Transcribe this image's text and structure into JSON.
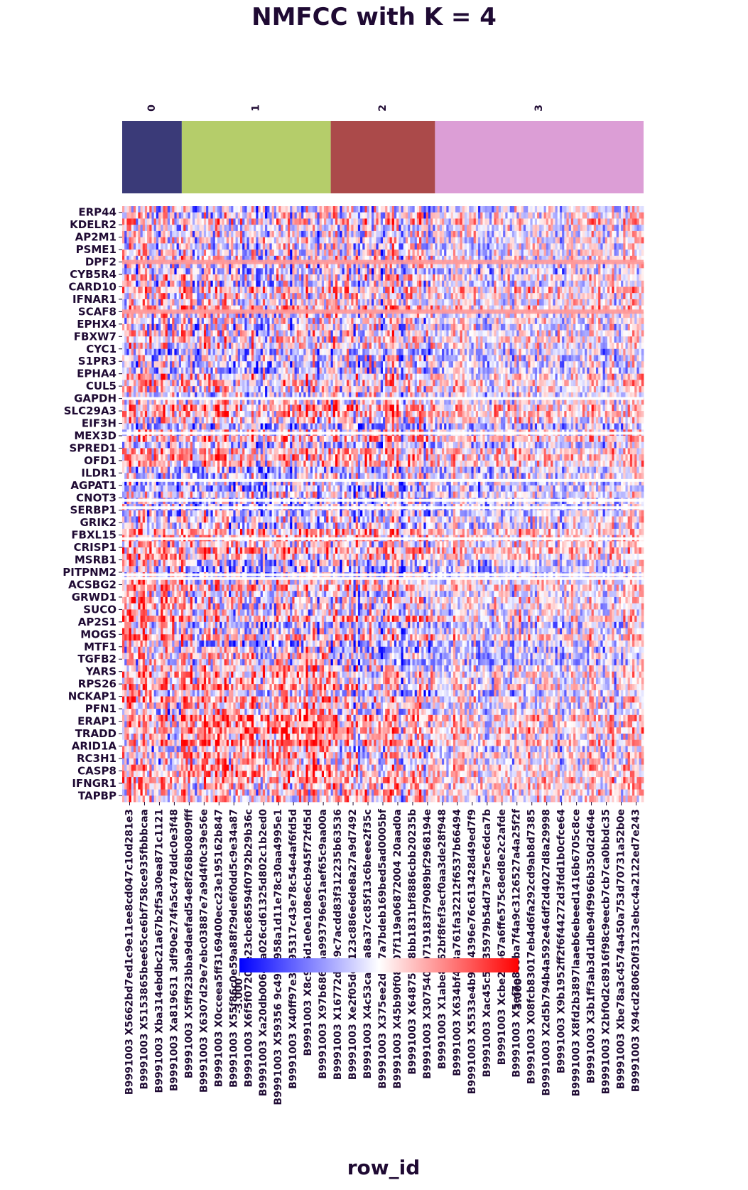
{
  "chart_data": {
    "type": "heatmap",
    "title": "NMFCC with K = 4",
    "xlabel": "row_id",
    "ylabel": "",
    "clusters": [
      {
        "label": "0",
        "color": "#3a3a78",
        "n_samples": 4
      },
      {
        "label": "1",
        "color": "#b5cd6a",
        "n_samples": 10
      },
      {
        "label": "2",
        "color": "#ab4a4a",
        "n_samples": 7
      },
      {
        "label": "3",
        "color": "#dc9ed6",
        "n_samples": 14
      }
    ],
    "genes": [
      "ERP44",
      "KDELR2",
      "AP2M1",
      "PSME1",
      "DPF2",
      "CYB5R4",
      "CARD10",
      "IFNAR1",
      "SCAF8",
      "EPHX4",
      "FBXW7",
      "CYC1",
      "S1PR3",
      "EPHA4",
      "CUL5",
      "GAPDH",
      "SLC29A3",
      "EIF3H",
      "MEX3D",
      "SPRED1",
      "OFD1",
      "ILDR1",
      "AGPAT1",
      "CNOT3",
      "SERBP1",
      "GRIK2",
      "FBXL15",
      "CRISP1",
      "MSRB1",
      "PITPNM2",
      "ACSBG2",
      "GRWD1",
      "SUCO",
      "AP2S1",
      "MOGS",
      "MTF1",
      "TGFB2",
      "YARS",
      "RPS26",
      "NCKAP1",
      "PFN1",
      "ERAP1",
      "TRADD",
      "ARID1A",
      "RC3H1",
      "CASP8",
      "IFNGR1",
      "TAPBP"
    ],
    "samples": [
      "B9991003_X5662bd7ed1c9e11ee8cd047c10d281e3",
      "B9991003_X5153865bee65ce6bf758ce935fbbbcaa",
      "B9991003_Xba314ebdbc21a67b2f5a30ea871c1121",
      "B9991003_Xa819631 3df90e274fa5c478ddc0e3f48",
      "B9991003_X5ff923bba9daefad54e8f268b0809fff",
      "B9991003_X6307d29e7ebc03887e7a9d4f0c39e56e",
      "B9991003_X0cceea5ff3169400ecc23e195162b847",
      "B9991003_X55f86c0e59a88f29de6f0dd5c9e34a87",
      "B9991003_X6f5f07201e23cbc86594f0792b29b36c",
      "B9991003_Xa20db00649a026cd61325d802c1b2ed0",
      "B9991003_X59356 9c497e958a1d11e78c30aa4995e1",
      "B9991003_X40ff97e3fb95317c43e78c54e4af6fd5d",
      "B9991003_X8c9e5d1e0e108e6cb945f72fd5d",
      "B9991003_X97b6866aa993796e91aef65c9aa00a",
      "B9991003_X16772d239c7acdd83f312235b63536",
      "B9991003_Xe2f05dd9123c886e6de8a27a9d7492",
      "B9991003_X4c53ca0da8a37cc85f13c6beee2f35c",
      "B9991003_X375ee2d507a7bdeb169bed5ad0005bf",
      "B9991003_X45b90f08507f119a06872004 20aad0a",
      "B9991003_X64875728bb1831bf8886cbb20235b",
      "B9991003_X307540b0719183f79089bf2968194e",
      "B9991003_X1abe8162bf8fef3ecf0aa3de28f948",
      "B9991003_X634bf443a761fa32212f6537b66494",
      "B9991003_X5533e4b9ab4396e76c613428d49ed7f9",
      "B9991003_Xac45c5f635979b54d73e75ec6dca7b",
      "B9991003_Xcbe29b67a6ffe575c8ed8e2c2afde",
      "B9991003_X5ef7e8c6ba7f4a9c3126527a4a25f2f",
      "B9991003_X08fcb83017eb4d6fa292cd9ab8d7385",
      "B9991003_X2d5b794b4a592e46df2d4027d8a29998",
      "B9991003_X9b1952ff2f6f44272d3fdd1b0cfce64",
      "B9991003_X8fd2b3897laaeb6ebeed1416b6705c8ce",
      "B9991003_X3b1ff3ab3d1dbe94f9966b350d2d64e",
      "B9991003_X2bf0d2c8916f98c9eecb7cb7ca0bbdc35",
      "B9991003_Xbe78a3c4574a450a753d70731a52b0e",
      "B9991003_X94cd280620f3123ebcc4a2122ed7e243"
    ],
    "colorscale": {
      "low": "#0000ff",
      "mid": "#ffffff",
      "high": "#ff0000"
    },
    "colorbar_ticks": [
      "-3.000",
      "3.000"
    ],
    "vmin": -3,
    "vmax": 3,
    "highlight_rows": [
      {
        "gene_index": 4.5,
        "color": "#ff9999"
      },
      {
        "gene_index": 8.5,
        "color": "#ff9999"
      }
    ],
    "white_rows": [
      15.5,
      18.3,
      22.1,
      23.7,
      24.3,
      26.8,
      29.7,
      30.0
    ]
  }
}
